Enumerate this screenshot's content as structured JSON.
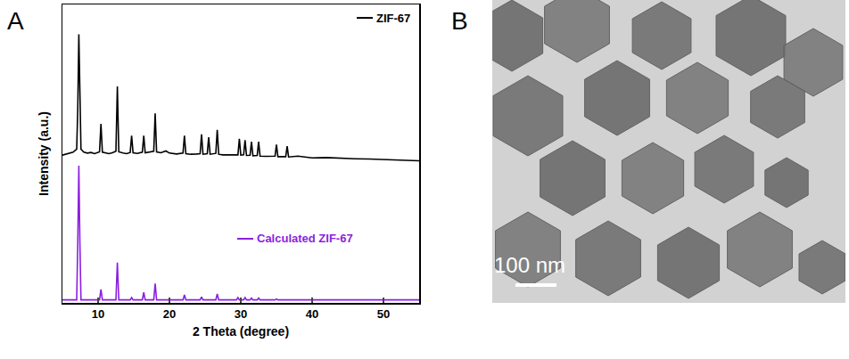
{
  "chart_data": {
    "type": "line",
    "panel_label": "A",
    "xlabel": "2 Theta (degree)",
    "ylabel": "Intensity (a.u.)",
    "xlim": [
      5,
      55
    ],
    "xticks": [
      10,
      20,
      30,
      40,
      50
    ],
    "ylim": [
      0,
      100
    ],
    "yticks": [],
    "tick_labels": "x",
    "grid": false,
    "series": [
      {
        "name": "ZIF-67",
        "color": "#000000",
        "x": [
          5,
          5.5,
          6,
          6.5,
          7.0,
          7.15,
          7.3,
          7.45,
          7.6,
          8,
          8.5,
          9,
          9.5,
          10.2,
          10.4,
          10.6,
          11,
          11.5,
          12,
          12.5,
          12.7,
          12.9,
          13.5,
          14,
          14.5,
          14.7,
          14.9,
          15.5,
          16.2,
          16.4,
          16.6,
          17,
          17.8,
          18.0,
          18.2,
          18.8,
          19.5,
          20,
          21,
          21.9,
          22.1,
          22.3,
          23,
          23.8,
          24.3,
          24.5,
          24.7,
          25.3,
          25.5,
          25.7,
          26.5,
          26.7,
          26.9,
          27.5,
          28.5,
          29.6,
          29.8,
          30.0,
          30.4,
          30.6,
          30.8,
          31.3,
          31.5,
          31.7,
          32.3,
          32.5,
          32.7,
          33.5,
          34.8,
          35.0,
          35.2,
          36.3,
          36.5,
          36.7,
          38,
          40,
          42,
          44,
          46,
          48,
          50,
          52,
          54,
          55
        ],
        "values": [
          49.5,
          49.8,
          50.2,
          50.5,
          51.5,
          65,
          90,
          62,
          51.5,
          50.5,
          50.2,
          50.4,
          50,
          50.6,
          60,
          50.5,
          50.2,
          50,
          50.3,
          50.8,
          72.5,
          50.6,
          50.2,
          50,
          50.4,
          56,
          50.3,
          50.1,
          50.5,
          56,
          50.3,
          50.4,
          50.8,
          63.5,
          50.6,
          50.3,
          50.9,
          50.2,
          49.9,
          50.2,
          56,
          50,
          49.8,
          49.9,
          50,
          56.5,
          49.8,
          50,
          55.5,
          49.8,
          50.1,
          58,
          49.8,
          49.6,
          49.5,
          49.6,
          55,
          49.5,
          49.6,
          54.5,
          49.4,
          49.5,
          54,
          49.3,
          49.4,
          54,
          49.2,
          49.1,
          49.2,
          53,
          49,
          49,
          52.5,
          48.9,
          49.2,
          48.6,
          48.7,
          48.4,
          48.3,
          48.2,
          48,
          47.9,
          47.7,
          47.6
        ]
      },
      {
        "name": "Calculated ZIF-67",
        "color": "#8B1FE0",
        "x": [
          5,
          7.0,
          7.15,
          7.3,
          7.45,
          7.6,
          10.2,
          10.4,
          10.6,
          12.5,
          12.7,
          12.9,
          14.5,
          14.7,
          14.9,
          16.2,
          16.4,
          16.6,
          17.8,
          18.0,
          18.2,
          21.9,
          22.1,
          22.3,
          24.3,
          24.5,
          24.7,
          26.5,
          26.7,
          26.9,
          29.4,
          29.6,
          29.8,
          30.4,
          30.6,
          30.8,
          31.3,
          31.5,
          31.7,
          32.3,
          32.5,
          32.7,
          34.8,
          35.0,
          35.2,
          36.3,
          36.5,
          36.7,
          55
        ],
        "values": [
          1,
          1,
          20,
          46,
          20,
          1,
          1,
          4.5,
          1,
          1,
          13.5,
          1,
          1,
          1.8,
          1,
          1,
          3.5,
          1,
          1,
          6.5,
          1,
          1,
          2.7,
          1,
          1,
          2,
          1,
          1,
          3,
          1,
          1,
          1.8,
          1,
          1,
          1.8,
          1,
          1,
          1.6,
          1,
          1,
          1.6,
          1,
          1,
          1.3,
          1,
          1,
          1.2,
          1,
          1
        ]
      }
    ]
  },
  "image_panel": {
    "panel_label": "B",
    "scale_bar_label": "100 nm"
  }
}
